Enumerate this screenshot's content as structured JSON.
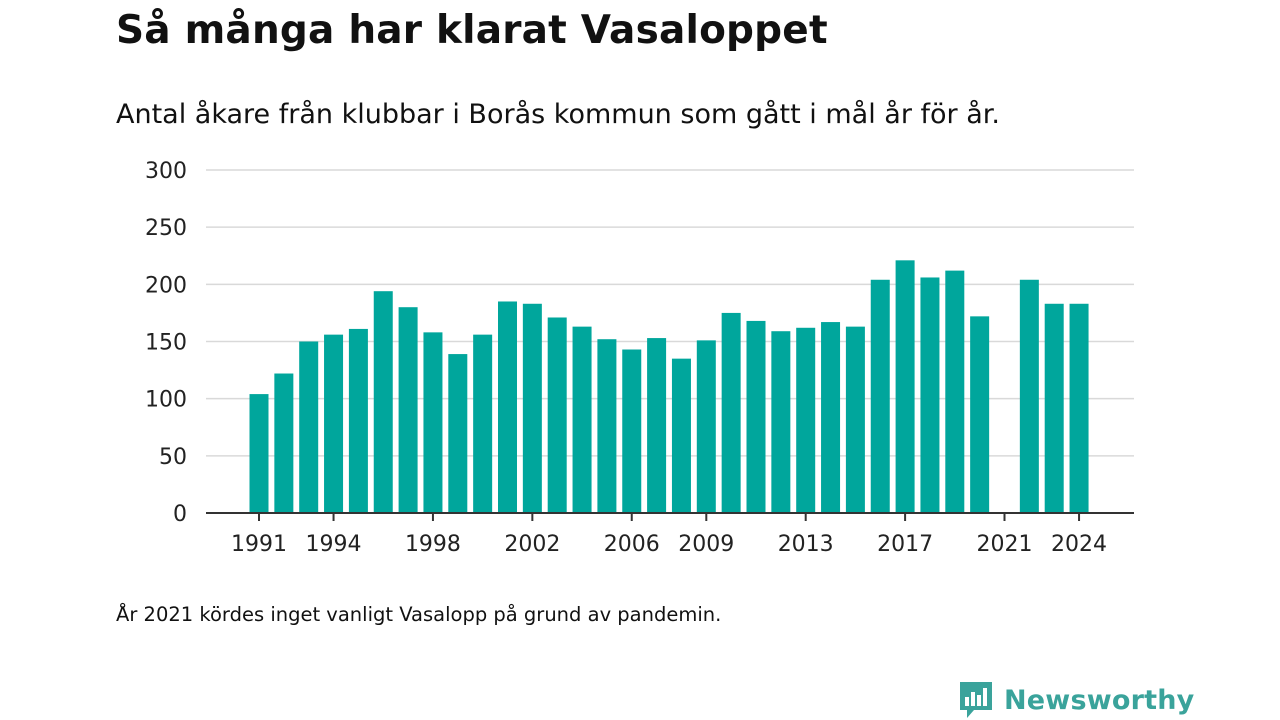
{
  "title": "Så många har klarat Vasaloppet",
  "subtitle": "Antal åkare från klubbar i Borås kommun som gått i mål år för år.",
  "footnote": "År 2021 kördes inget vanligt Vasalopp på grund av pandemin.",
  "brand": {
    "name": "Newsworthy",
    "icon": "newsworthy-logo-icon",
    "color": "#3aa39b"
  },
  "chart_data": {
    "type": "bar",
    "categories": [
      1991,
      1992,
      1993,
      1994,
      1995,
      1996,
      1997,
      1998,
      1999,
      2000,
      2001,
      2002,
      2003,
      2004,
      2005,
      2006,
      2007,
      2008,
      2009,
      2010,
      2011,
      2012,
      2013,
      2014,
      2015,
      2016,
      2017,
      2018,
      2019,
      2020,
      2021,
      2022,
      2023,
      2024
    ],
    "values": [
      104,
      122,
      150,
      156,
      161,
      194,
      180,
      158,
      139,
      156,
      185,
      183,
      171,
      163,
      152,
      143,
      153,
      135,
      151,
      175,
      168,
      159,
      162,
      167,
      163,
      204,
      221,
      206,
      212,
      172,
      null,
      204,
      183,
      183
    ],
    "x_tick_labels": [
      "1991",
      "1994",
      "1998",
      "2002",
      "2006",
      "2009",
      "2013",
      "2017",
      "2021",
      "2024"
    ],
    "y_ticks": [
      0,
      50,
      100,
      150,
      200,
      250,
      300
    ],
    "ylim": [
      0,
      300
    ],
    "grid": true,
    "bar_color": "#00a69c",
    "grid_color": "#d9d9d9",
    "axis_color": "#333333"
  }
}
